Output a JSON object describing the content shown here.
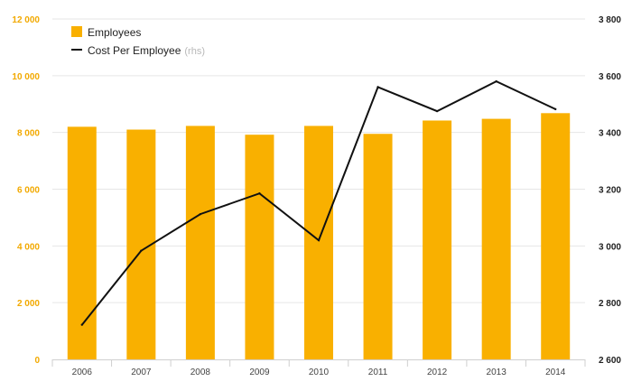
{
  "chart_data": {
    "type": "bar",
    "categories": [
      "2006",
      "2007",
      "2008",
      "2009",
      "2010",
      "2011",
      "2012",
      "2013",
      "2014"
    ],
    "series": [
      {
        "name": "Employees",
        "type": "bar",
        "axis": "left",
        "color": "#f9b000",
        "values": [
          8200,
          8100,
          8230,
          7920,
          8230,
          7950,
          8420,
          8480,
          8680
        ]
      },
      {
        "name": "Cost Per Employee",
        "legend_suffix": "(rhs)",
        "type": "line",
        "axis": "right",
        "color": "#111111",
        "values": [
          2722,
          2983,
          3112,
          3185,
          3020,
          3560,
          3475,
          3580,
          3482
        ]
      }
    ],
    "y_left": {
      "range": [
        0,
        12000
      ],
      "ticks": [
        0,
        2000,
        4000,
        6000,
        8000,
        10000,
        12000
      ],
      "tick_labels": [
        "0",
        "2 000",
        "4 000",
        "6 000",
        "8 000",
        "10 000",
        "12 000"
      ],
      "color": "#f2a900"
    },
    "y_right": {
      "range": [
        2600,
        3800
      ],
      "ticks": [
        2600,
        2800,
        3000,
        3200,
        3400,
        3600,
        3800
      ],
      "tick_labels": [
        "2 600",
        "2 800",
        "3 000",
        "3 200",
        "3 400",
        "3 600",
        "3 800"
      ],
      "color": "#222222"
    },
    "grid": true,
    "legend_position": "top-left"
  }
}
